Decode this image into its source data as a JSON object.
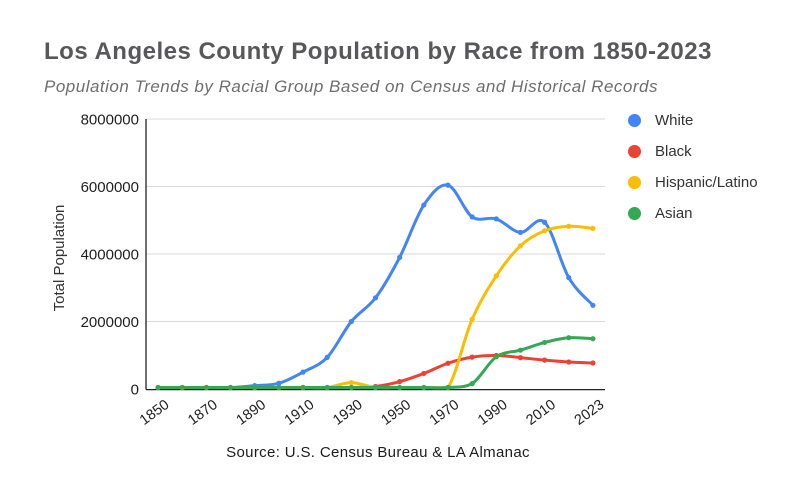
{
  "title": "Los Angeles County Population by Race from 1850-2023",
  "subtitle": "Population Trends by Racial Group Based on Census and Historical Records",
  "source_note": "Source: U.S. Census Bureau & LA Almanac",
  "chart_data": {
    "type": "line",
    "smooth": true,
    "x": [
      1850,
      1860,
      1870,
      1880,
      1890,
      1900,
      1910,
      1920,
      1930,
      1940,
      1950,
      1960,
      1970,
      1980,
      1990,
      2000,
      2010,
      2020,
      2023
    ],
    "x_tick_labels": [
      "1850",
      "1870",
      "1890",
      "1910",
      "1930",
      "1950",
      "1970",
      "1990",
      "2010",
      "2023"
    ],
    "ylabel": "Total Population",
    "ylim": [
      0,
      8000000
    ],
    "yticks": [
      0,
      2000000,
      4000000,
      6000000,
      8000000
    ],
    "grid": "horizontal",
    "legend_position": "right",
    "series": [
      {
        "name": "White",
        "color": "#4285F4",
        "values": [
          1600,
          11000,
          15000,
          33000,
          100000,
          170000,
          500000,
          936000,
          2000000,
          2700000,
          3900000,
          5450000,
          6040000,
          5100000,
          5040000,
          4640000,
          4940000,
          3300000,
          2480000
        ]
      },
      {
        "name": "Black",
        "color": "#EA4335",
        "values": [
          100,
          200,
          300,
          500,
          1300,
          2800,
          9400,
          18700,
          46000,
          75000,
          218000,
          461000,
          763000,
          944000,
          993000,
          930000,
          856000,
          800000,
          770000
        ]
      },
      {
        "name": "Hispanic/Latino",
        "color": "#FBBC04",
        "values": [
          0,
          0,
          0,
          0,
          0,
          0,
          0,
          0,
          190000,
          0,
          0,
          0,
          0,
          2066000,
          3351000,
          4242000,
          4688000,
          4820000,
          4760000
        ]
      },
      {
        "name": "Asian",
        "color": "#34A853",
        "values": [
          0,
          0,
          0,
          0,
          0,
          0,
          0,
          0,
          0,
          0,
          0,
          0,
          0,
          160000,
          954000,
          1150000,
          1380000,
          1520000,
          1490000
        ]
      }
    ]
  }
}
